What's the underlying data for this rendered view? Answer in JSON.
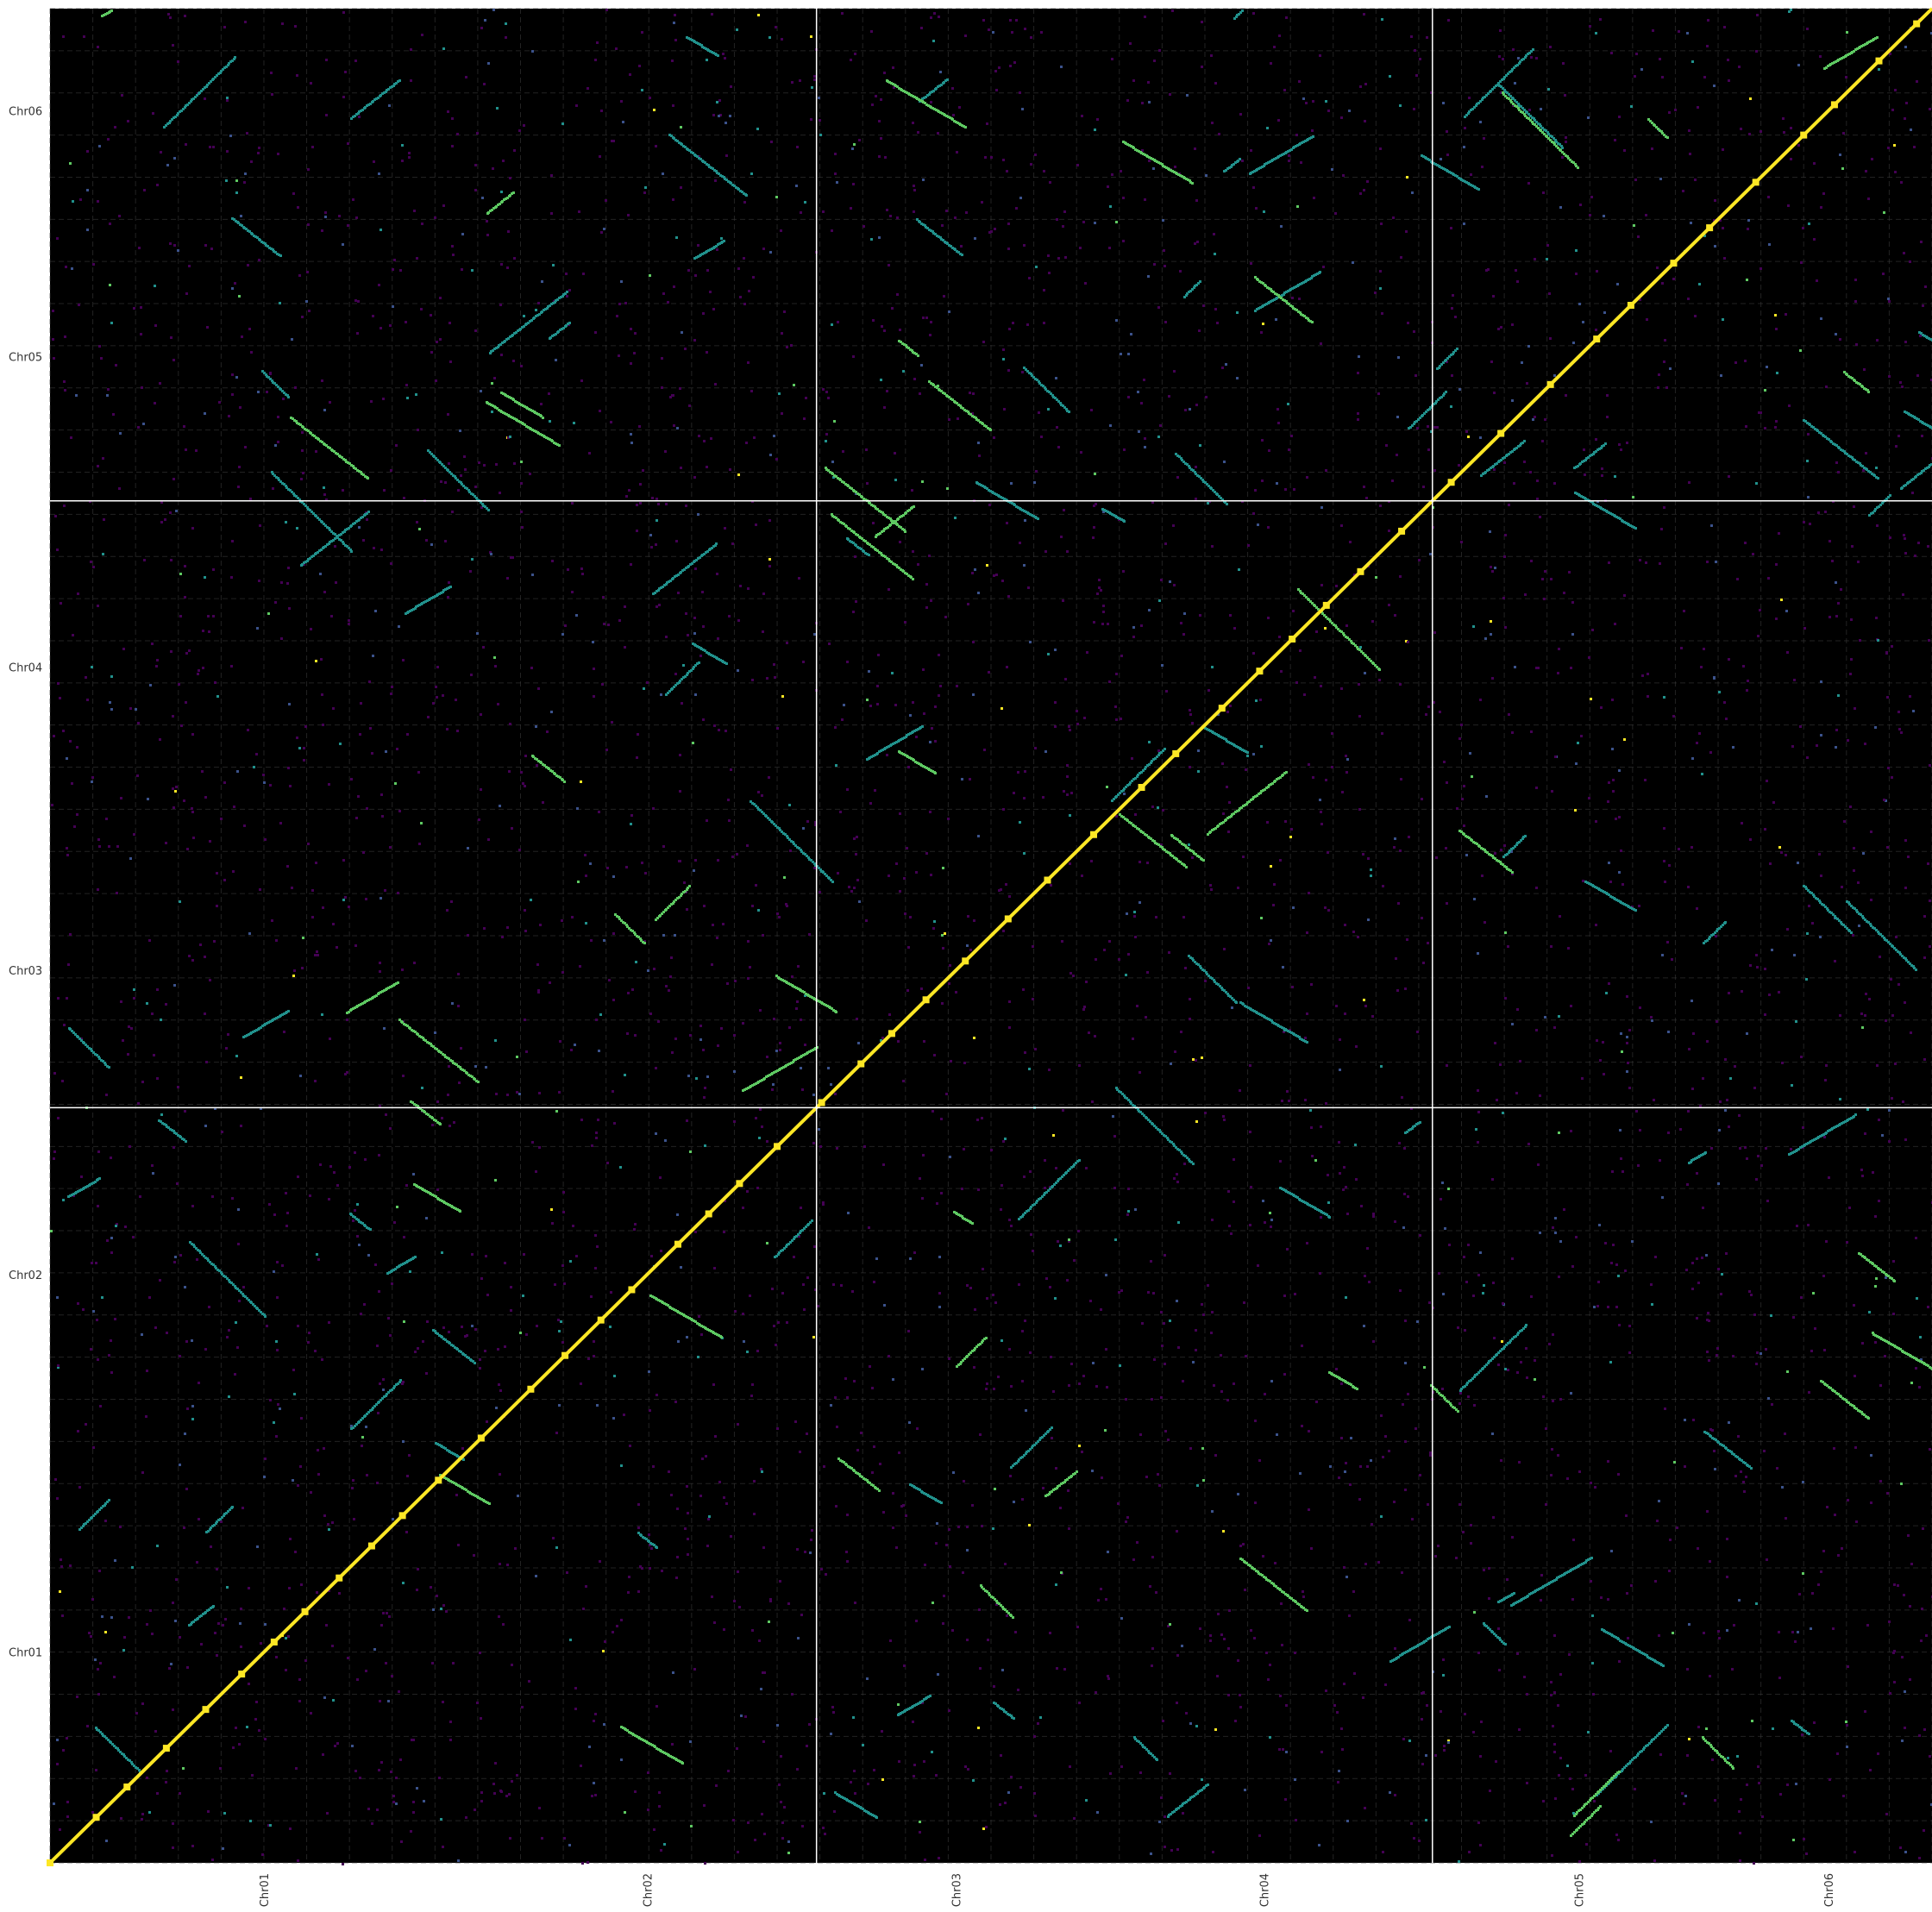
{
  "chart_data": {
    "type": "heatmap",
    "title": "",
    "xlabel": "",
    "ylabel": "",
    "background_color": "#000000",
    "color_scale": [
      "#000000",
      "#440154",
      "#3b528b",
      "#21918c",
      "#5ec962",
      "#fde725"
    ],
    "grid": "dashed",
    "x_chromosomes": [
      {
        "name": "Chr01",
        "start": 0,
        "end": 250
      },
      {
        "name": "Chr02",
        "start": 250,
        "end": 448
      },
      {
        "name": "Chr03",
        "start": 448,
        "end": 611
      },
      {
        "name": "Chr04",
        "start": 611,
        "end": 808
      },
      {
        "name": "Chr05",
        "start": 808,
        "end": 979
      },
      {
        "name": "Chr06",
        "start": 979,
        "end": 1100
      }
    ],
    "y_chromosomes": [
      {
        "name": "Chr01",
        "start": 0,
        "end": 250
      },
      {
        "name": "Chr02",
        "start": 250,
        "end": 448
      },
      {
        "name": "Chr03",
        "start": 448,
        "end": 611
      },
      {
        "name": "Chr04",
        "start": 611,
        "end": 808
      },
      {
        "name": "Chr05",
        "start": 808,
        "end": 979
      },
      {
        "name": "Chr06",
        "start": 979,
        "end": 1100
      }
    ],
    "xlim": [
      0,
      1100
    ],
    "ylim": [
      0,
      1100
    ],
    "highlight_boundaries": [
      448,
      808
    ],
    "diagonal_value": 1.0
  }
}
